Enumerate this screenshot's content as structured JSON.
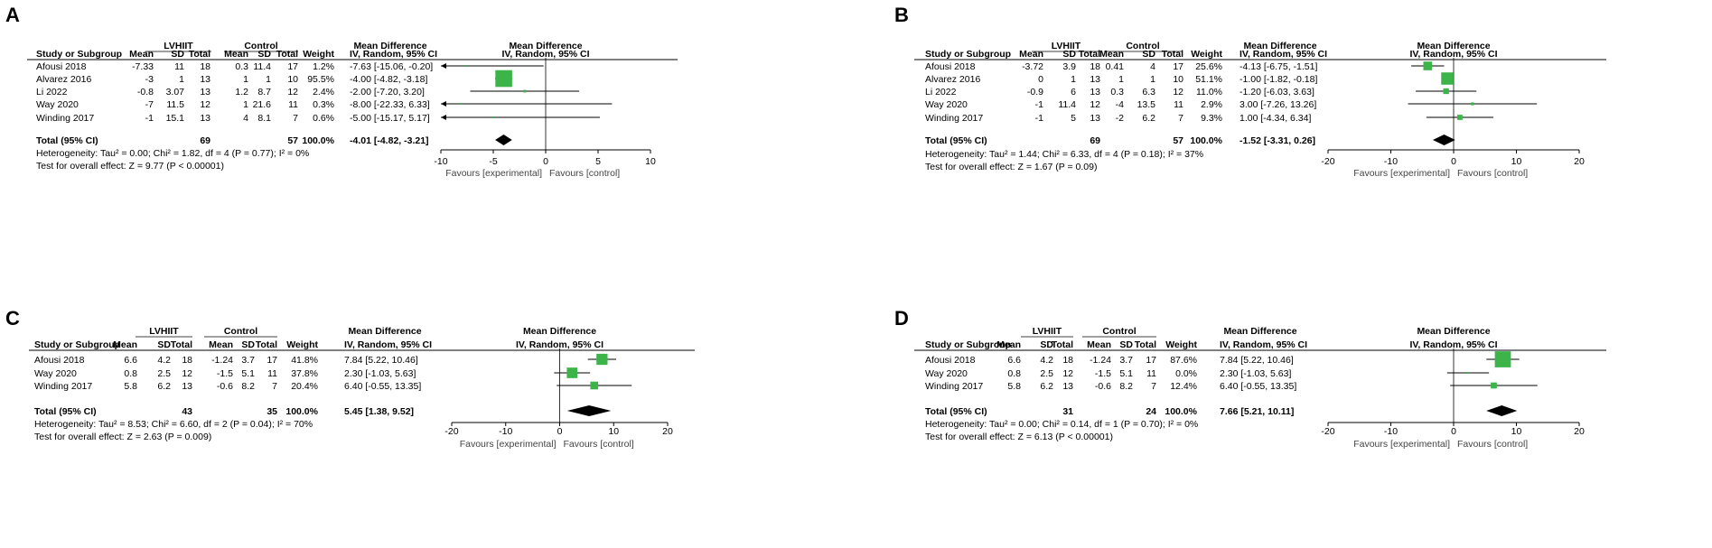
{
  "colors": {
    "square": "#3CB44A",
    "diamond": "#000000",
    "line": "#000000"
  },
  "chart_data": [
    {
      "panel": "A",
      "type": "forest",
      "title": "Mean Difference",
      "method": "IV, Random, 95% CI",
      "group1": "LVHIIT",
      "group2": "Control",
      "col_headers": [
        "Study or Subgroup",
        "Mean",
        "SD",
        "Total",
        "Mean",
        "SD",
        "Total",
        "Weight",
        "Mean Difference",
        "IV, Random, 95% CI"
      ],
      "xlim": [
        -10,
        10
      ],
      "ticks": [
        "-10",
        "-5",
        "0",
        "5",
        "10"
      ],
      "tick_values": [
        -10,
        -5,
        0,
        5,
        10
      ],
      "favours_left": "Favours [experimental]",
      "favours_right": "Favours [control]",
      "studies": [
        {
          "name": "Afousi 2018",
          "m1": "-7.33",
          "sd1": "11",
          "n1": "18",
          "m2": "0.3",
          "sd2": "11.4",
          "n2": "17",
          "weight": "1.2%",
          "ci_text": "-7.63 [-15.06, -0.20]",
          "md": -7.63,
          "lo": -15.06,
          "hi": -0.2,
          "w": 1.2
        },
        {
          "name": "Alvarez 2016",
          "m1": "-3",
          "sd1": "1",
          "n1": "13",
          "m2": "1",
          "sd2": "1",
          "n2": "10",
          "weight": "95.5%",
          "ci_text": "-4.00 [-4.82, -3.18]",
          "md": -4.0,
          "lo": -4.82,
          "hi": -3.18,
          "w": 95.5
        },
        {
          "name": "Li 2022",
          "m1": "-0.8",
          "sd1": "3.07",
          "n1": "13",
          "m2": "1.2",
          "sd2": "8.7",
          "n2": "12",
          "weight": "2.4%",
          "ci_text": "-2.00 [-7.20, 3.20]",
          "md": -2.0,
          "lo": -7.2,
          "hi": 3.2,
          "w": 2.4
        },
        {
          "name": "Way 2020",
          "m1": "-7",
          "sd1": "11.5",
          "n1": "12",
          "m2": "1",
          "sd2": "21.6",
          "n2": "11",
          "weight": "0.3%",
          "ci_text": "-8.00 [-22.33, 6.33]",
          "md": -8.0,
          "lo": -22.33,
          "hi": 6.33,
          "w": 0.3
        },
        {
          "name": "Winding 2017",
          "m1": "-1",
          "sd1": "15.1",
          "n1": "13",
          "m2": "4",
          "sd2": "8.1",
          "n2": "7",
          "weight": "0.6%",
          "ci_text": "-5.00 [-15.17, 5.17]",
          "md": -5.0,
          "lo": -15.17,
          "hi": 5.17,
          "w": 0.6
        }
      ],
      "total": {
        "label": "Total (95% CI)",
        "n1": "69",
        "n2": "57",
        "weight": "100.0%",
        "ci_text": "-4.01 [-4.82, -3.21]",
        "md": -4.01,
        "lo": -4.82,
        "hi": -3.21
      },
      "heterogeneity": "Heterogeneity: Tau² = 0.00; Chi² = 1.82, df = 4 (P = 0.77); I² = 0%",
      "overall": "Test for overall effect: Z = 9.77 (P < 0.00001)"
    },
    {
      "panel": "B",
      "type": "forest",
      "title": "Mean Difference",
      "method": "IV, Random, 95% CI",
      "group1": "LVHIIT",
      "group2": "Control",
      "col_headers": [
        "Study or Subgroup",
        "Mean",
        "SD",
        "Total",
        "Mean",
        "SD",
        "Total",
        "Weight",
        "Mean Difference",
        "IV, Random, 95% CI"
      ],
      "xlim": [
        -20,
        20
      ],
      "ticks": [
        "-20",
        "-10",
        "0",
        "10",
        "20"
      ],
      "tick_values": [
        -20,
        -10,
        0,
        10,
        20
      ],
      "favours_left": "Favours [experimental]",
      "favours_right": "Favours [control]",
      "studies": [
        {
          "name": "Afousi 2018",
          "m1": "-3.72",
          "sd1": "3.9",
          "n1": "18",
          "m2": "0.41",
          "sd2": "4",
          "n2": "17",
          "weight": "25.6%",
          "ci_text": "-4.13 [-6.75, -1.51]",
          "md": -4.13,
          "lo": -6.75,
          "hi": -1.51,
          "w": 25.6
        },
        {
          "name": "Alvarez 2016",
          "m1": "0",
          "sd1": "1",
          "n1": "13",
          "m2": "1",
          "sd2": "1",
          "n2": "10",
          "weight": "51.1%",
          "ci_text": "-1.00 [-1.82, -0.18]",
          "md": -1.0,
          "lo": -1.82,
          "hi": -0.18,
          "w": 51.1
        },
        {
          "name": "Li 2022",
          "m1": "-0.9",
          "sd1": "6",
          "n1": "13",
          "m2": "0.3",
          "sd2": "6.3",
          "n2": "12",
          "weight": "11.0%",
          "ci_text": "-1.20 [-6.03, 3.63]",
          "md": -1.2,
          "lo": -6.03,
          "hi": 3.63,
          "w": 11.0
        },
        {
          "name": "Way 2020",
          "m1": "-1",
          "sd1": "11.4",
          "n1": "12",
          "m2": "-4",
          "sd2": "13.5",
          "n2": "11",
          "weight": "2.9%",
          "ci_text": "3.00 [-7.26, 13.26]",
          "md": 3.0,
          "lo": -7.26,
          "hi": 13.26,
          "w": 2.9
        },
        {
          "name": "Winding 2017",
          "m1": "-1",
          "sd1": "5",
          "n1": "13",
          "m2": "-2",
          "sd2": "6.2",
          "n2": "7",
          "weight": "9.3%",
          "ci_text": "1.00 [-4.34, 6.34]",
          "md": 1.0,
          "lo": -4.34,
          "hi": 6.34,
          "w": 9.3
        }
      ],
      "total": {
        "label": "Total (95% CI)",
        "n1": "69",
        "n2": "57",
        "weight": "100.0%",
        "ci_text": "-1.52 [-3.31, 0.26]",
        "md": -1.52,
        "lo": -3.31,
        "hi": 0.26
      },
      "heterogeneity": "Heterogeneity: Tau² = 1.44; Chi² = 6.33, df = 4 (P = 0.18); I² = 37%",
      "overall": "Test for overall effect: Z = 1.67 (P = 0.09)"
    },
    {
      "panel": "C",
      "type": "forest",
      "title": "Mean Difference",
      "method": "IV, Random, 95% CI",
      "group1": "LVHIIT",
      "group2": "Control",
      "col_headers": [
        "Study or Subgroup",
        "Mean",
        "SD",
        "Total",
        "Mean",
        "SD",
        "Total",
        "Weight",
        "Mean Difference",
        "IV, Random, 95% CI"
      ],
      "xlim": [
        -20,
        20
      ],
      "ticks": [
        "-20",
        "-10",
        "0",
        "10",
        "20"
      ],
      "tick_values": [
        -20,
        -10,
        0,
        10,
        20
      ],
      "favours_left": "Favours [experimental]",
      "favours_right": "Favours [control]",
      "studies": [
        {
          "name": "Afousi 2018",
          "m1": "6.6",
          "sd1": "4.2",
          "n1": "18",
          "m2": "-1.24",
          "sd2": "3.7",
          "n2": "17",
          "weight": "41.8%",
          "ci_text": "7.84 [5.22, 10.46]",
          "md": 7.84,
          "lo": 5.22,
          "hi": 10.46,
          "w": 41.8
        },
        {
          "name": "Way 2020",
          "m1": "0.8",
          "sd1": "2.5",
          "n1": "12",
          "m2": "-1.5",
          "sd2": "5.1",
          "n2": "11",
          "weight": "37.8%",
          "ci_text": "2.30 [-1.03, 5.63]",
          "md": 2.3,
          "lo": -1.03,
          "hi": 5.63,
          "w": 37.8
        },
        {
          "name": "Winding 2017",
          "m1": "5.8",
          "sd1": "6.2",
          "n1": "13",
          "m2": "-0.6",
          "sd2": "8.2",
          "n2": "7",
          "weight": "20.4%",
          "ci_text": "6.40 [-0.55, 13.35]",
          "md": 6.4,
          "lo": -0.55,
          "hi": 13.35,
          "w": 20.4
        }
      ],
      "total": {
        "label": "Total (95% CI)",
        "n1": "43",
        "n2": "35",
        "weight": "100.0%",
        "ci_text": "5.45 [1.38, 9.52]",
        "md": 5.45,
        "lo": 1.38,
        "hi": 9.52
      },
      "heterogeneity": "Heterogeneity: Tau² = 8.53; Chi² = 6.60, df = 2 (P = 0.04); I² = 70%",
      "overall": "Test for overall effect: Z = 2.63 (P = 0.009)"
    },
    {
      "panel": "D",
      "type": "forest",
      "title": "Mean Difference",
      "method": "IV, Random, 95% CI",
      "group1": "LVHIIT",
      "group2": "Control",
      "col_headers": [
        "Study or Subgroup",
        "Mean",
        "SD",
        "Total",
        "Mean",
        "SD",
        "Total",
        "Weight",
        "Mean Difference",
        "IV, Random, 95% CI"
      ],
      "xlim": [
        -20,
        20
      ],
      "ticks": [
        "-20",
        "-10",
        "0",
        "10",
        "20"
      ],
      "tick_values": [
        -20,
        -10,
        0,
        10,
        20
      ],
      "favours_left": "Favours [experimental]",
      "favours_right": "Favours [control]",
      "studies": [
        {
          "name": "Afousi 2018",
          "m1": "6.6",
          "sd1": "4.2",
          "n1": "18",
          "m2": "-1.24",
          "sd2": "3.7",
          "n2": "17",
          "weight": "87.6%",
          "ci_text": "7.84 [5.22, 10.46]",
          "md": 7.84,
          "lo": 5.22,
          "hi": 10.46,
          "w": 87.6
        },
        {
          "name": "Way 2020",
          "m1": "0.8",
          "sd1": "2.5",
          "n1": "12",
          "m2": "-1.5",
          "sd2": "5.1",
          "n2": "11",
          "weight": "0.0%",
          "ci_text": "2.30 [-1.03, 5.63]",
          "md": 2.3,
          "lo": -1.03,
          "hi": 5.63,
          "w": 0.0
        },
        {
          "name": "Winding 2017",
          "m1": "5.8",
          "sd1": "6.2",
          "n1": "13",
          "m2": "-0.6",
          "sd2": "8.2",
          "n2": "7",
          "weight": "12.4%",
          "ci_text": "6.40 [-0.55, 13.35]",
          "md": 6.4,
          "lo": -0.55,
          "hi": 13.35,
          "w": 12.4
        }
      ],
      "total": {
        "label": "Total (95% CI)",
        "n1": "31",
        "n2": "24",
        "weight": "100.0%",
        "ci_text": "7.66 [5.21, 10.11]",
        "md": 7.66,
        "lo": 5.21,
        "hi": 10.11
      },
      "heterogeneity": "Heterogeneity: Tau² = 0.00; Chi² = 0.14, df = 1 (P = 0.70); I² = 0%",
      "overall": "Test for overall effect: Z = 6.13 (P < 0.00001)"
    }
  ]
}
